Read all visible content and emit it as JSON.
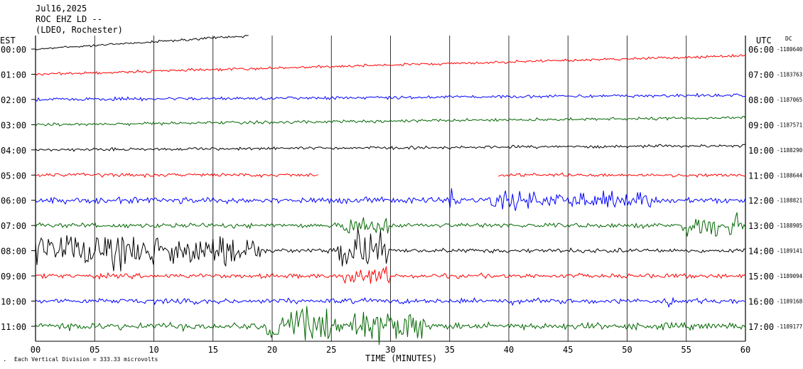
{
  "header": {
    "date": "Jul16,2025",
    "station": "ROC EHZ LD --",
    "network": "(LDEO, Rochester)"
  },
  "left_axis_label": "EST",
  "right_axis_label": "UTC",
  "dc_label": "DC",
  "x_axis_title": "TIME (MINUTES)",
  "footer_note": "Each Vertical Division = 333.33 microvolts",
  "colors": {
    "black": "#000000",
    "red": "#ff0000",
    "blue": "#0000ff",
    "green": "#006600",
    "grid": "#000000",
    "axis_text": "#000000"
  },
  "chart_data": {
    "type": "line",
    "x_ticks": [
      "00",
      "05",
      "10",
      "15",
      "20",
      "25",
      "30",
      "35",
      "40",
      "45",
      "50",
      "55",
      "60"
    ],
    "xlim": [
      0,
      60
    ],
    "rows": [
      {
        "est": "00:00",
        "utc": "06:00",
        "dc": "-1180640",
        "color": "black"
      },
      {
        "est": "01:00",
        "utc": "07:00",
        "dc": "-1183763",
        "color": "red"
      },
      {
        "est": "02:00",
        "utc": "08:00",
        "dc": "-1187065",
        "color": "blue"
      },
      {
        "est": "03:00",
        "utc": "09:00",
        "dc": "-1187571",
        "color": "green"
      },
      {
        "est": "04:00",
        "utc": "10:00",
        "dc": "-1188290",
        "color": "black"
      },
      {
        "est": "05:00",
        "utc": "11:00",
        "dc": "-1188644",
        "color": "red"
      },
      {
        "est": "06:00",
        "utc": "12:00",
        "dc": "-1188821",
        "color": "blue"
      },
      {
        "est": "07:00",
        "utc": "13:00",
        "dc": "-1188905",
        "color": "green"
      },
      {
        "est": "08:00",
        "utc": "14:00",
        "dc": "-1189141",
        "color": "black"
      },
      {
        "est": "09:00",
        "utc": "15:00",
        "dc": "-1189094",
        "color": "red"
      },
      {
        "est": "10:00",
        "utc": "16:00",
        "dc": "-1189168",
        "color": "blue"
      },
      {
        "est": "11:00",
        "utc": "17:00",
        "dc": "-1189177",
        "color": "green"
      }
    ]
  }
}
